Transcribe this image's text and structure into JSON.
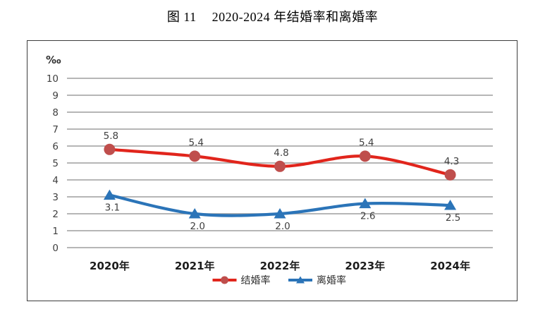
{
  "title": {
    "figure_label": "图 11",
    "text": "2020-2024 年结婚率和离婚率"
  },
  "chart_data": {
    "type": "line",
    "title": "图 11 2020-2024 年结婚率和离婚率",
    "unit_label": "‰",
    "categories": [
      "2020年",
      "2021年",
      "2022年",
      "2023年",
      "2024年"
    ],
    "series": [
      {
        "name": "结婚率",
        "values": [
          5.8,
          5.4,
          4.8,
          5.4,
          4.3
        ],
        "color": "#e1251c",
        "marker_color": "#bf4e4c",
        "marker": "circle",
        "label_position": "above"
      },
      {
        "name": "离婚率",
        "values": [
          3.1,
          2.0,
          2.0,
          2.6,
          2.5
        ],
        "color": "#2b74b8",
        "marker_color": "#2b74b8",
        "marker": "triangle",
        "label_position": "below"
      }
    ],
    "ylim": [
      0,
      10
    ],
    "ytick_step": 1,
    "grid": true,
    "grid_color": "#9e9e9e",
    "legend_position": "bottom-center",
    "smooth": true
  }
}
